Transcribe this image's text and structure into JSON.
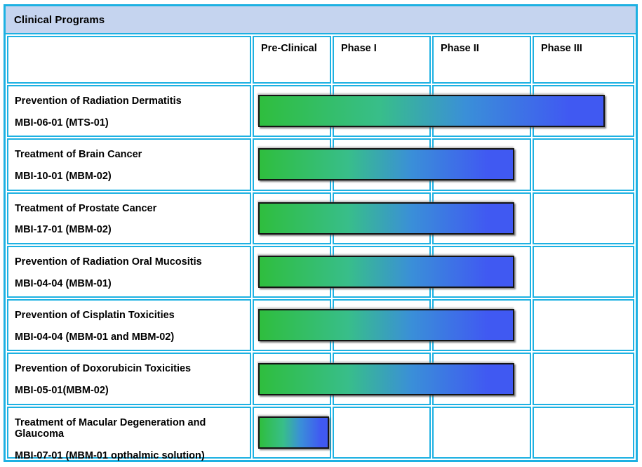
{
  "title": "Clinical Programs",
  "columns": [
    {
      "label": "Pre-Clinical"
    },
    {
      "label": "Phase I"
    },
    {
      "label": "Phase II"
    },
    {
      "label": "Phase III"
    }
  ],
  "programs": [
    {
      "name": "Prevention of Radiation Dermatitis",
      "code": "MBI-06-01 (MTS-01)",
      "progress": 3.68
    },
    {
      "name": "Treatment of Brain Cancer",
      "code": "MBI-10-01 (MBM-02)",
      "progress": 2.82
    },
    {
      "name": "Treatment of Prostate Cancer",
      "code": "MBI-17-01 (MBM-02)",
      "progress": 2.82
    },
    {
      "name": "Prevention of Radiation Oral Mucositis",
      "code": "MBI-04-04 (MBM-01)",
      "progress": 2.82
    },
    {
      "name": "Prevention of Cisplatin Toxicities",
      "code": "MBI-04-04 (MBM-01 and MBM-02)",
      "progress": 2.82
    },
    {
      "name": "Prevention of Doxorubicin Toxicities",
      "code": "MBI-05-01(MBM-02)",
      "progress": 2.82
    },
    {
      "name": "Treatment of Macular Degeneration and Glaucoma",
      "code": "MBI-07-01 (MBM-01 opthalmic solution)",
      "progress": 0.96
    }
  ],
  "colors": {
    "grid_border": "#1db1e2",
    "title_background": "#c5d4ef",
    "bar_gradient_start": "#2fbe3e",
    "bar_gradient_mid1": "#38be8a",
    "bar_gradient_mid2": "#3a8fd8",
    "bar_gradient_end": "#4059f2",
    "bar_border": "#141414",
    "text": "#000000"
  },
  "chart_data": {
    "type": "bar",
    "orientation": "horizontal",
    "title": "Clinical Programs",
    "phases": [
      "Pre-Clinical",
      "Phase I",
      "Phase II",
      "Phase III"
    ],
    "categories": [
      "Prevention of Radiation Dermatitis MBI-06-01 (MTS-01)",
      "Treatment of Brain Cancer MBI-10-01 (MBM-02)",
      "Treatment of Prostate Cancer MBI-17-01 (MBM-02)",
      "Prevention of Radiation Oral Mucositis MBI-04-04 (MBM-01)",
      "Prevention of Cisplatin Toxicities MBI-04-04 (MBM-01 and MBM-02)",
      "Prevention of Doxorubicin Toxicities MBI-05-01(MBM-02)",
      "Treatment of Macular Degeneration and Glaucoma MBI-07-01 (MBM-01 opthalmic solution)"
    ],
    "values": [
      3.68,
      2.82,
      2.82,
      2.82,
      2.82,
      2.82,
      0.96
    ],
    "value_scale": "phase units: 0-1 Pre-Clinical, 1-2 Phase I, 2-3 Phase II, 3-4 Phase III",
    "legend": "none",
    "grid": true,
    "bar_gradient": [
      "#2fbe3e",
      "#38be8a",
      "#3a8fd8",
      "#4059f2"
    ]
  }
}
